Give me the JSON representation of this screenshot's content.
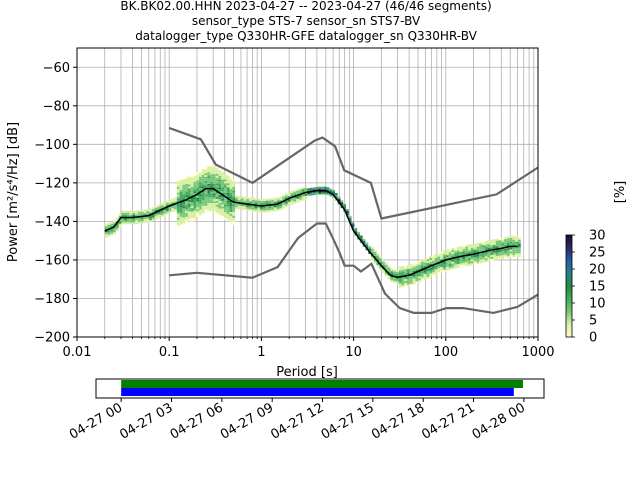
{
  "title": {
    "line1": "BK.BK02.00.HHN   2023-04-27 -- 2023-04-27  (46/46 segments)",
    "line2": "sensor_type STS-7 sensor_sn STS7-BV",
    "line3": "datalogger_type Q330HR-GFE datalogger_sn Q330HR-BV"
  },
  "chart_data": [
    {
      "type": "heatmap",
      "xlabel": "Period [s]",
      "ylabel": "Power [m²/s⁴/Hz] [dB]",
      "x_scale": "log",
      "xlim": [
        0.01,
        1000
      ],
      "ylim": [
        -200,
        -50
      ],
      "x_ticks": [
        0.01,
        0.1,
        1,
        10,
        100,
        1000
      ],
      "x_tick_labels": [
        "0.01",
        "0.1",
        "1",
        "10",
        "100",
        "1000"
      ],
      "y_ticks": [
        -200,
        -180,
        -160,
        -140,
        -120,
        -100,
        -80,
        -60
      ],
      "y_tick_labels": [
        "−200",
        "−180",
        "−160",
        "−140",
        "−120",
        "−100",
        "−80",
        "−60"
      ],
      "grid": true,
      "colorbar": {
        "label": "[%]",
        "range": [
          0,
          30
        ],
        "ticks": [
          0,
          5,
          10,
          15,
          20,
          25,
          30
        ],
        "colors": [
          "#ffffcc",
          "#d9f0a3",
          "#78c679",
          "#41ab5d",
          "#238b45",
          "#2c7f8a",
          "#225ea8",
          "#2c2a66",
          "#1a0c2e"
        ]
      },
      "mode_line": {
        "x": [
          0.02,
          0.025,
          0.03,
          0.04,
          0.06,
          0.1,
          0.15,
          0.2,
          0.25,
          0.3,
          0.4,
          0.5,
          0.7,
          1,
          1.5,
          2,
          3,
          4,
          5,
          6,
          8,
          10,
          12,
          15,
          20,
          25,
          30,
          40,
          50,
          70,
          100,
          150,
          200,
          300,
          400,
          500,
          600
        ],
        "y": [
          -145,
          -143,
          -138,
          -138,
          -137,
          -132,
          -129,
          -126,
          -123,
          -123,
          -127,
          -130,
          -131,
          -132,
          -131,
          -128,
          -125,
          -124,
          -124,
          -126,
          -134,
          -145,
          -150,
          -156,
          -163,
          -168,
          -169,
          -168,
          -166,
          -163,
          -160,
          -158,
          -157,
          -155,
          -154,
          -153,
          -153
        ]
      },
      "noise_model_high": {
        "x": [
          0.1,
          0.22,
          0.32,
          0.8,
          3.8,
          4.6,
          6.3,
          7.9,
          15.4,
          20,
          354.8,
          1000
        ],
        "y": [
          -91.5,
          -97.4,
          -110.5,
          -120,
          -98,
          -96.5,
          -101,
          -113.5,
          -120,
          -138.5,
          -126,
          -112
        ]
      },
      "noise_model_low": {
        "x": [
          0.1,
          0.2,
          0.8,
          1.5,
          2.5,
          4,
          5,
          6,
          7,
          8,
          10,
          12,
          15.6,
          21.9,
          31.6,
          45,
          70,
          101,
          154,
          328,
          600,
          1000
        ],
        "y": [
          -168,
          -166.7,
          -169.2,
          -163.7,
          -148.6,
          -141.1,
          -141.1,
          -149,
          -156,
          -163,
          -163,
          -166,
          -162,
          -177.5,
          -185,
          -187.5,
          -187.5,
          -185,
          -185,
          -187.5,
          -184.4,
          -178
        ]
      }
    },
    {
      "type": "bar",
      "title": "",
      "x_tick_labels": [
        "04-27 00",
        "04-27 03",
        "04-27 06",
        "04-27 09",
        "04-27 12",
        "04-27 15",
        "04-27 18",
        "04-27 21",
        "04-28 00"
      ],
      "xlim_hours": [
        -1.5,
        25.2
      ],
      "series": [
        {
          "color": "#008000",
          "start_hour": 0,
          "end_hour": 23.95
        },
        {
          "color": "#0000ff",
          "start_hour": 0,
          "end_hour": 23.4
        }
      ]
    }
  ]
}
